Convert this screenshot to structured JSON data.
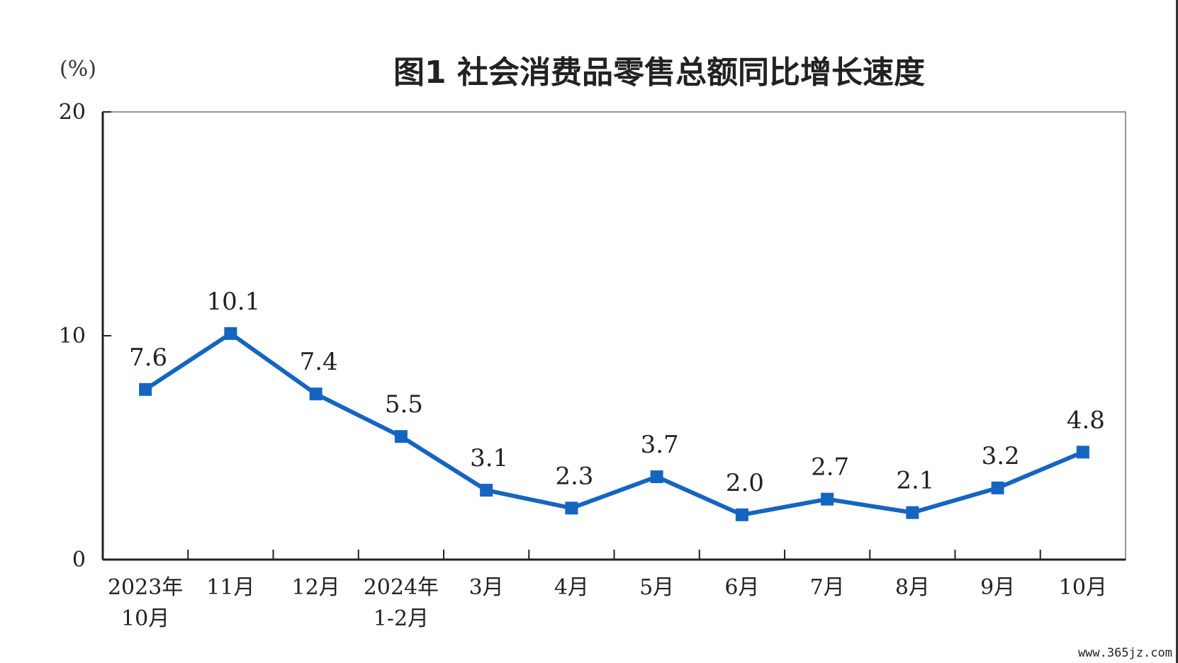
{
  "header": {
    "title": "图1 社会消费品零售总额同比增长速度",
    "unit": "(%)"
  },
  "watermark": "www.365jz.com",
  "chart_data": {
    "type": "line",
    "title": "图1 社会消费品零售总额同比增长速度",
    "ylabel": "(%)",
    "xlabel": "",
    "ylim": [
      0,
      20
    ],
    "yticks": [
      0,
      10,
      20
    ],
    "grid": false,
    "categories": [
      [
        "2023年",
        "10月"
      ],
      [
        "11月"
      ],
      [
        "12月"
      ],
      [
        "2024年",
        "1-2月"
      ],
      [
        "3月"
      ],
      [
        "4月"
      ],
      [
        "5月"
      ],
      [
        "6月"
      ],
      [
        "7月"
      ],
      [
        "8月"
      ],
      [
        "9月"
      ],
      [
        "10月"
      ]
    ],
    "series": [
      {
        "values": [
          7.6,
          10.1,
          7.4,
          5.5,
          3.1,
          2.3,
          3.7,
          2.0,
          2.7,
          2.1,
          3.2,
          4.8
        ],
        "labels": [
          "7.6",
          "10.1",
          "7.4",
          "5.5",
          "3.1",
          "2.3",
          "3.7",
          "2.0",
          "2.7",
          "2.1",
          "3.2",
          "4.8"
        ],
        "color": "#1565c0"
      }
    ]
  }
}
